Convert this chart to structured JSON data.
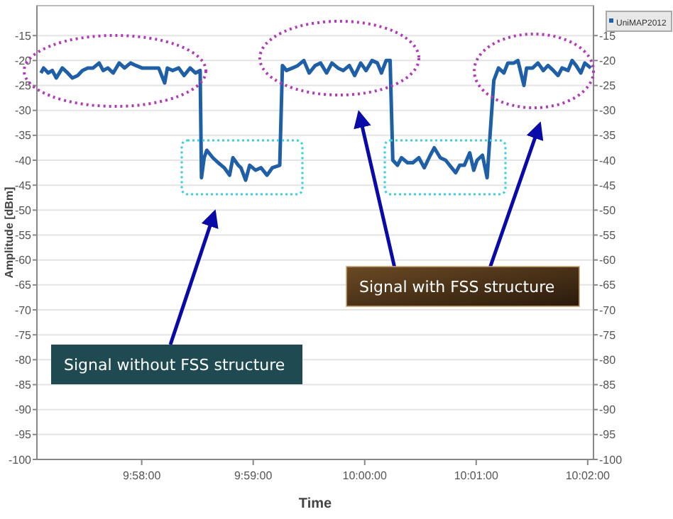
{
  "chart_data": {
    "type": "line",
    "xlabel": "Time",
    "ylabel": "Amplitude [dBm]",
    "x": [
      9.9516,
      9.952,
      9.9527,
      9.9533,
      9.9539,
      9.9548,
      9.9556,
      9.9563,
      9.9571,
      9.9578,
      9.9586,
      9.9594,
      9.9603,
      9.9609,
      9.9616,
      9.9624,
      9.9633,
      9.9641,
      9.965,
      9.9658,
      9.9667,
      9.9679,
      9.9692,
      9.9701,
      9.9705,
      9.9713,
      9.9722,
      9.973,
      9.9739,
      9.9747,
      9.9754,
      9.9756,
      9.976,
      9.9764,
      9.9773,
      9.9781,
      9.979,
      9.9798,
      9.9803,
      9.9811,
      9.9815,
      9.9822,
      9.9828,
      9.9837,
      9.9845,
      9.9854,
      9.9862,
      9.9873,
      9.9877,
      9.9883,
      9.9892,
      9.99,
      9.9909,
      9.9917,
      9.9926,
      9.9934,
      9.9943,
      9.9951,
      9.996,
      9.9968,
      9.9977,
      9.9985,
      9.9994,
      10.0002,
      10.0011,
      10.0019,
      10.0025,
      10.0032,
      10.0038,
      10.0042,
      10.0049,
      10.0055,
      10.0064,
      10.0072,
      10.0081,
      10.0089,
      10.0098,
      10.0104,
      10.0113,
      10.0121,
      10.013,
      10.0136,
      10.0142,
      10.0149,
      10.0157,
      10.0163,
      10.0168,
      10.0176,
      10.0183,
      10.0193,
      10.02,
      10.0208,
      10.0214,
      10.0223,
      10.0229,
      10.0238,
      10.0242,
      10.0251,
      10.0259,
      10.0267,
      10.0274,
      10.0282,
      10.0289,
      10.0295,
      10.0304,
      10.031,
      10.0316,
      10.0323,
      10.0329,
      10.0338
    ],
    "series": [
      {
        "name": "UniMAP2012",
        "color": "#1f5fa8",
        "values": [
          -22.5,
          -21.5,
          -22.5,
          -22,
          -23.5,
          -21.5,
          -22.5,
          -23.5,
          -23,
          -22,
          -21.5,
          -21.5,
          -20.5,
          -22,
          -21.5,
          -22.5,
          -20.5,
          -21.5,
          -20.5,
          -21,
          -21.5,
          -21.5,
          -21.5,
          -24.5,
          -21.5,
          -22,
          -21.5,
          -23,
          -21.5,
          -22.5,
          -22,
          -43.5,
          -39.5,
          -38,
          -39.5,
          -40.5,
          -41.5,
          -43,
          -39.5,
          -41,
          -41.5,
          -44,
          -41,
          -42,
          -41.5,
          -43,
          -41.5,
          -41,
          -21,
          -22,
          -21.5,
          -21,
          -20,
          -22.5,
          -21,
          -20.5,
          -22.5,
          -20.5,
          -21.5,
          -22,
          -21,
          -23,
          -20.5,
          -22,
          -20,
          -20.5,
          -22.5,
          -20,
          -20,
          -40,
          -41,
          -39.5,
          -40.5,
          -40.5,
          -39.5,
          -41.5,
          -39,
          -37.5,
          -39.5,
          -40,
          -41.5,
          -42.5,
          -41,
          -41,
          -38.5,
          -42,
          -40,
          -39,
          -43.5,
          -24,
          -21.5,
          -22.5,
          -20.5,
          -20.5,
          -20,
          -25,
          -21.5,
          -21.5,
          -20.5,
          -22,
          -21,
          -22,
          -23,
          -21.5,
          -22,
          -20,
          -21,
          -22.5,
          -20.5,
          -21.5
        ]
      }
    ],
    "xlim": [
      9.951,
      10.0342
    ],
    "xticks": [
      {
        "value": 9.966667,
        "label": "9:58:00"
      },
      {
        "value": 9.983333,
        "label": "9:59:00"
      },
      {
        "value": 10,
        "label": "10:00:00"
      },
      {
        "value": 10.016667,
        "label": "10:01:00"
      },
      {
        "value": 10.033333,
        "label": "10:02:00"
      }
    ],
    "ylim": [
      -100,
      -9
    ],
    "yticks": [
      -15,
      -20,
      -25,
      -30,
      -35,
      -40,
      -45,
      -50,
      -55,
      -60,
      -65,
      -70,
      -75,
      -80,
      -85,
      -90,
      -95,
      -100
    ],
    "y2lim": [
      -100,
      -9
    ],
    "y2ticks": [
      -15,
      -20,
      -25,
      -30,
      -35,
      -40,
      -45,
      -50,
      -55,
      -60,
      -65,
      -70,
      -75,
      -80,
      -85,
      -90,
      -95,
      -100
    ],
    "grid": "y",
    "legend": "top right",
    "marker": "none",
    "line_style": "solid",
    "annotations": [
      "Signal without FSS structure",
      "Signal with FSS structure"
    ]
  }
}
